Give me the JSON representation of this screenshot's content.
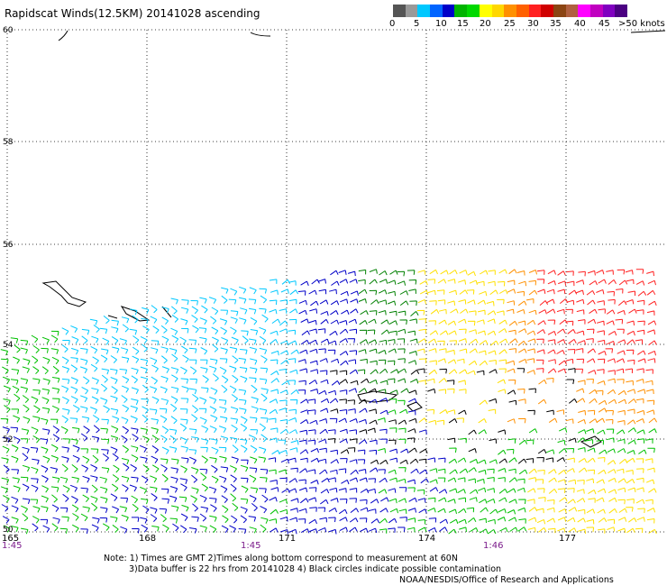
{
  "title": "Rapidscat Winds(12.5KM) 20141028 ascending",
  "colorbar": {
    "colors": [
      "#555555",
      "#999999",
      "#00c8ff",
      "#0064ff",
      "#0000c8",
      "#00b400",
      "#00d800",
      "#ffff00",
      "#ffd700",
      "#ff9000",
      "#ff6000",
      "#ff2020",
      "#d00000",
      "#8b4513",
      "#b06040",
      "#ff00ff",
      "#c000c0",
      "#8000c0",
      "#4b0082"
    ],
    "labels": [
      "0",
      "5",
      "10",
      "15",
      "20",
      "25",
      "30",
      "35",
      "40",
      "45",
      ">50 knots"
    ]
  },
  "lat_labels": [
    "60",
    "58",
    "56",
    "54",
    "52",
    "50"
  ],
  "lon_labels": [
    "165",
    "168",
    "171",
    "174",
    "177"
  ],
  "time_labels": [
    "1:45",
    "1:45",
    "1:46"
  ],
  "notes": {
    "line1": "Note: 1) Times are GMT 2)Times along bottom correspond to measurement at 60N",
    "line2": "3)Data buffer is 22 hrs from 20141028 4) Black circles indicate possible contamination",
    "line3": "NOAA/NESDIS/Office of Research and Applications"
  },
  "palette": {
    "cyan": "#00c8ff",
    "blue": "#0000c8",
    "green": "#00c000",
    "darkgreen": "#008000",
    "yellow": "#ffe000",
    "orange": "#ff9000",
    "red": "#ff2020",
    "black": "#000000"
  }
}
